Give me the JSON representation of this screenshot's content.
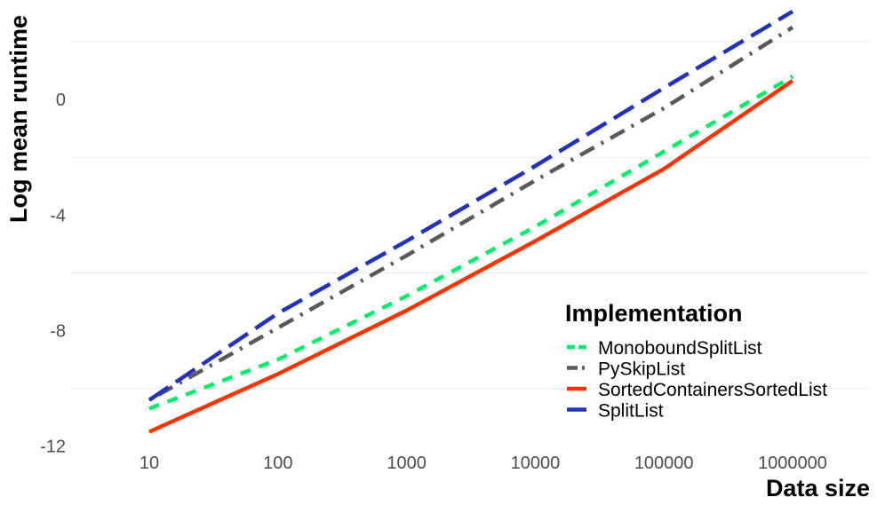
{
  "chart_data": {
    "type": "line",
    "title": "",
    "xlabel": "Data size",
    "ylabel": "Log mean runtime",
    "x_scale": "log10",
    "x": [
      10,
      100,
      1000,
      10000,
      100000,
      1000000
    ],
    "x_tick_labels": [
      "10",
      "100",
      "1000",
      "10000",
      "100000",
      "1000000"
    ],
    "y_ticks": [
      0,
      -4,
      -8,
      -12
    ],
    "y_tick_labels": [
      "0",
      "-4",
      "-8",
      "-12"
    ],
    "ylim": [
      -12.1,
      3.2
    ],
    "grid": true,
    "legend_title": "Implementation",
    "legend_position": "bottom-right",
    "series": [
      {
        "name": "MonoboundSplitList",
        "color": "#00ee66",
        "dash": "dashed",
        "values": [
          -10.7,
          -9.0,
          -6.8,
          -4.4,
          -1.8,
          0.8
        ]
      },
      {
        "name": "PySkipList",
        "color": "#595959",
        "dash": "dotdash",
        "values": [
          -10.4,
          -7.9,
          -5.4,
          -2.8,
          -0.3,
          2.5
        ]
      },
      {
        "name": "SortedContainersSortedList",
        "color": "#ff3300",
        "dash": "solid",
        "values": [
          -11.5,
          -9.5,
          -7.3,
          -4.9,
          -2.4,
          0.65
        ]
      },
      {
        "name": "SplitList",
        "color": "#2233bb",
        "dash": "longdash",
        "values": [
          -10.4,
          -7.4,
          -4.9,
          -2.3,
          0.4,
          3.05
        ]
      }
    ]
  }
}
